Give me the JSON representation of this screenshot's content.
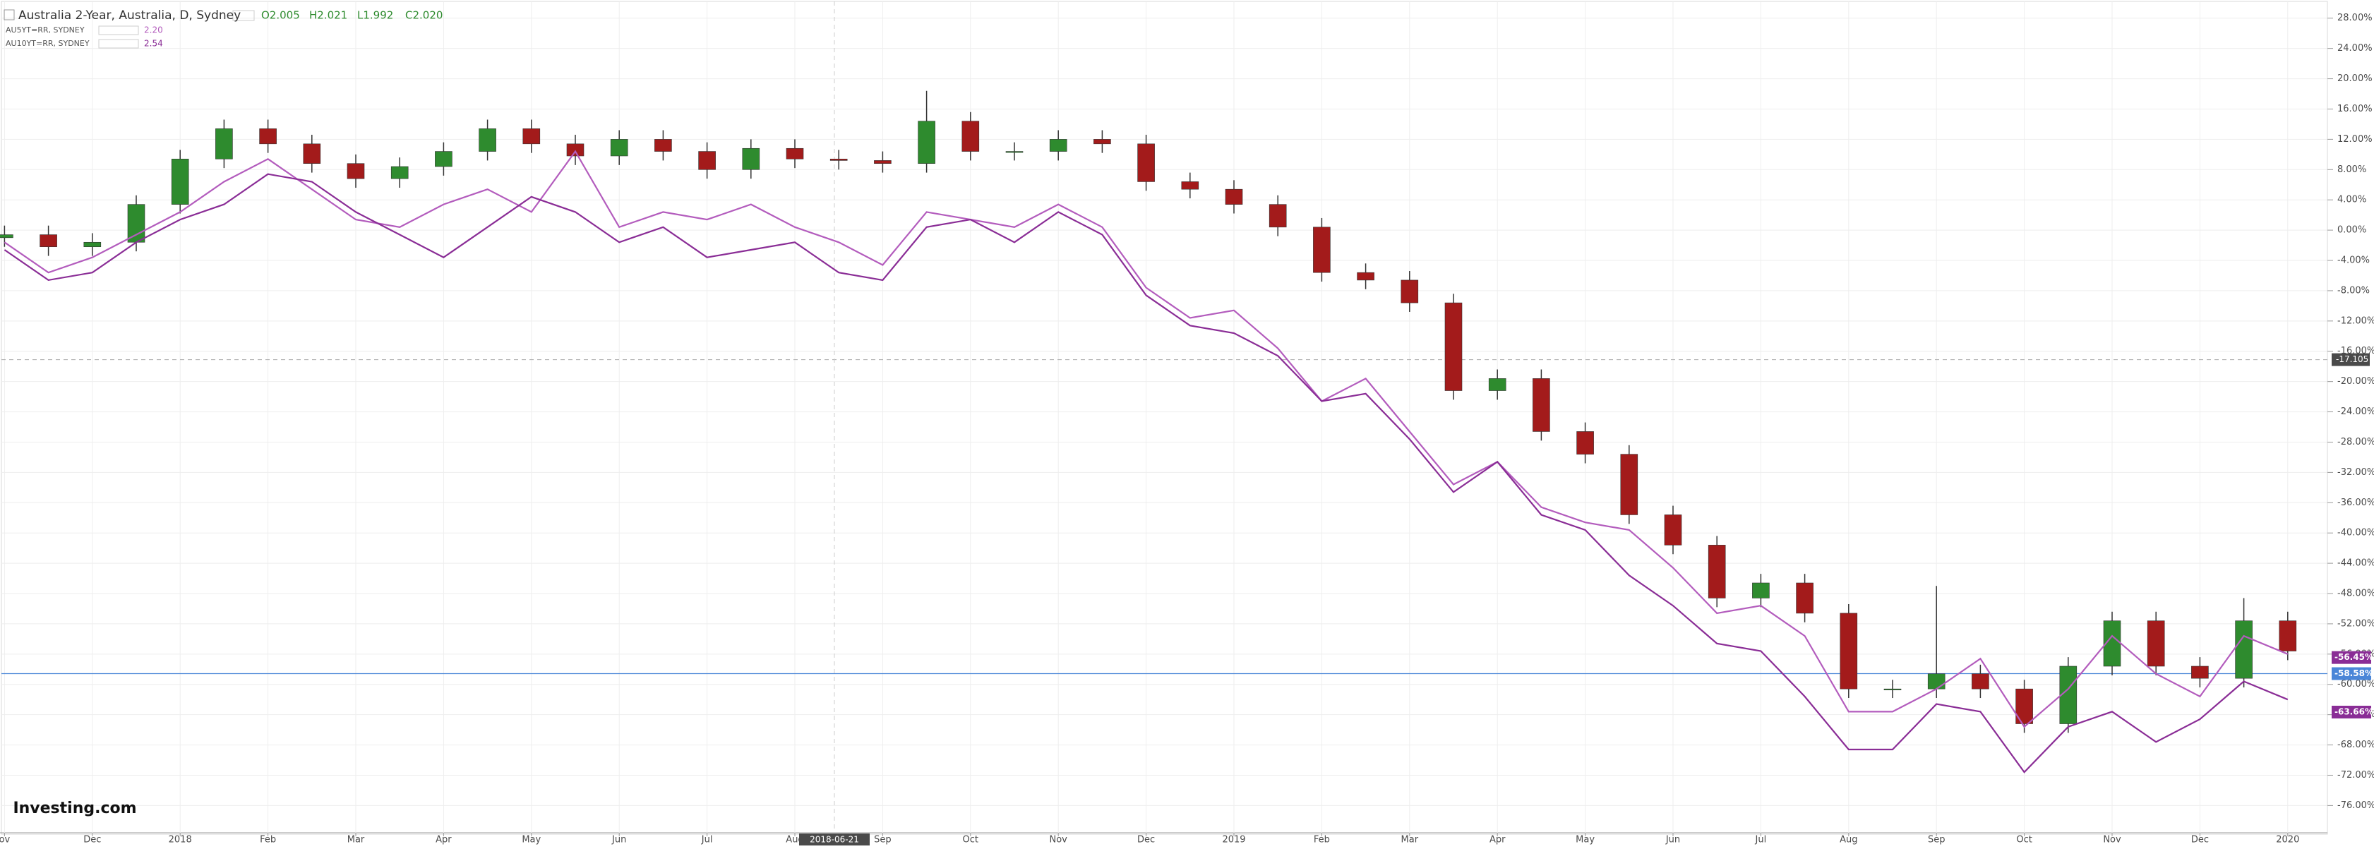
{
  "chart_data": {
    "type": "candlestick",
    "title": "Australia 2-Year, Australia, D, Sydney",
    "ohlc_labels": [
      "O2.005",
      "H2.021",
      "L1.992",
      "C2.020"
    ],
    "categories": [
      "ov",
      null,
      "Dec",
      null,
      "2018",
      null,
      "Feb",
      null,
      "Mar",
      null,
      "Apr",
      null,
      "May",
      null,
      "Jun",
      null,
      "Jul",
      null,
      "Aug",
      null,
      "Sep",
      null,
      "Oct",
      null,
      "Nov",
      null,
      "Dec",
      null,
      "2019",
      null,
      "Feb",
      null,
      "Mar",
      null,
      "Apr",
      null,
      "May",
      null,
      "Jun",
      null,
      "Jul",
      null,
      "Aug",
      null,
      "Sep",
      null,
      "Oct",
      null,
      "Nov",
      null,
      "Dec",
      null,
      "2020"
    ],
    "candles": {
      "up_color": "#2e8b2e",
      "down_color": "#a31b1b",
      "open": [
        -1,
        -0.6,
        -2.2,
        -1.6,
        3.4,
        9.4,
        13.4,
        11.4,
        8.8,
        6.8,
        8.4,
        10.4,
        13.4,
        11.4,
        9.8,
        12,
        10.4,
        8,
        10.8,
        9.4,
        9.2,
        8.8,
        14.4,
        10.4,
        10.4,
        12,
        11.4,
        6.4,
        5.4,
        3.4,
        0.4,
        -5.6,
        -6.6,
        -9.6,
        -21.2,
        -19.6,
        -26.6,
        -29.6,
        -37.6,
        -41.6,
        -48.6,
        -46.6,
        -50.6,
        -60.6,
        -60.6,
        -58.6,
        -60.6,
        -65.2,
        -57.6,
        -51.6,
        -57.6,
        -59.2,
        -51.6
      ],
      "high": [
        0.6,
        0.6,
        -0.4,
        4.6,
        10.6,
        14.6,
        14.6,
        12.6,
        10,
        9.6,
        11.6,
        14.6,
        14.6,
        12.6,
        13.2,
        13.2,
        11.6,
        12,
        12,
        10.6,
        10.4,
        18.4,
        15.6,
        11.6,
        13.2,
        13.2,
        12.6,
        7.6,
        6.6,
        4.6,
        1.6,
        -4.4,
        -5.4,
        -8.4,
        -18.4,
        -18.4,
        -25.4,
        -28.4,
        -36.4,
        -40.4,
        -45.4,
        -45.4,
        -49.4,
        -59.4,
        -47,
        -57.4,
        -59.4,
        -56.4,
        -50.4,
        -50.4,
        -56.4,
        -48.6,
        -50.4
      ],
      "low": [
        -2.2,
        -3.4,
        -3.4,
        -2.8,
        2.2,
        8.2,
        10.2,
        7.6,
        5.6,
        5.6,
        7.2,
        9.2,
        10.2,
        8.6,
        8.6,
        9.2,
        6.8,
        6.8,
        8.2,
        8,
        7.6,
        7.6,
        9.2,
        9.2,
        9.2,
        10.2,
        5.2,
        4.2,
        2.2,
        -0.8,
        -6.8,
        -7.8,
        -10.8,
        -22.4,
        -22.4,
        -27.8,
        -30.8,
        -38.8,
        -42.8,
        -49.8,
        -49.8,
        -51.8,
        -61.8,
        -61.8,
        -61.8,
        -61.8,
        -66.4,
        -66.4,
        -58.8,
        -58.8,
        -60.4,
        -60.4,
        -56.8
      ],
      "close": [
        -0.6,
        -2.2,
        -1.6,
        3.4,
        9.4,
        13.4,
        11.4,
        8.8,
        6.8,
        8.4,
        10.4,
        13.4,
        11.4,
        9.8,
        12,
        10.4,
        8,
        10.8,
        9.4,
        9.2,
        8.8,
        14.4,
        10.4,
        10.4,
        12,
        11.4,
        6.4,
        5.4,
        3.4,
        0.4,
        -5.6,
        -6.6,
        -9.6,
        -21.2,
        -19.6,
        -26.6,
        -29.6,
        -37.6,
        -41.6,
        -48.6,
        -46.6,
        -50.6,
        -60.6,
        -60.6,
        -58.6,
        -60.6,
        -65.2,
        -57.6,
        -51.6,
        -57.6,
        -59.2,
        -51.6,
        -55.6
      ]
    },
    "series": [
      {
        "name": "AU5YT=RR, SYDNEY",
        "color": "#b35cbd",
        "last": {
          "value": 2.2,
          "label": "2.20"
        },
        "values": [
          -1.6,
          -5.6,
          -3.6,
          -0.6,
          2.4,
          6.4,
          9.4,
          5.4,
          1.4,
          0.4,
          3.4,
          5.4,
          2.4,
          10.4,
          0.4,
          2.4,
          1.4,
          3.4,
          0.4,
          -1.6,
          -4.6,
          2.4,
          1.4,
          0.4,
          3.4,
          0.4,
          -7.6,
          -11.6,
          -10.6,
          -15.6,
          -22.6,
          -19.6,
          -26.6,
          -33.6,
          -30.6,
          -36.6,
          -38.6,
          -39.6,
          -44.6,
          -50.6,
          -49.6,
          -53.6,
          -63.6,
          -63.6,
          -60.6,
          -56.6,
          -65.6,
          -60.6,
          -53.6,
          -58.6,
          -61.6,
          -53.6,
          -56
        ]
      },
      {
        "name": "AU10YT=RR, SYDNEY",
        "color": "#8a2d96",
        "last": {
          "value": 2.54,
          "label": "2.54"
        },
        "values": [
          -2.6,
          -6.6,
          -5.6,
          -1.6,
          1.4,
          3.4,
          7.4,
          6.4,
          2.4,
          -0.6,
          -3.6,
          0.4,
          4.4,
          2.4,
          -1.6,
          0.4,
          -3.6,
          -2.6,
          -1.6,
          -5.6,
          -6.6,
          0.4,
          1.4,
          -1.6,
          2.4,
          -0.6,
          -8.6,
          -12.6,
          -13.6,
          -16.6,
          -22.6,
          -21.6,
          -27.6,
          -34.6,
          -30.6,
          -37.6,
          -39.6,
          -45.6,
          -49.6,
          -54.6,
          -55.6,
          -61.6,
          -68.6,
          -68.6,
          -62.6,
          -63.6,
          -71.6,
          -65.6,
          -63.6,
          -67.6,
          -64.6,
          -59.6,
          -62
        ]
      }
    ],
    "ylim": [
      -79.6,
      30.4
    ],
    "yticks": [
      {
        "value": 28,
        "label": "28.00%"
      },
      {
        "value": 24,
        "label": "24.00%"
      },
      {
        "value": 20,
        "label": "20.00%"
      },
      {
        "value": 16,
        "label": "16.00%"
      },
      {
        "value": 12,
        "label": "12.00%"
      },
      {
        "value": 8,
        "label": "8.00%"
      },
      {
        "value": 4,
        "label": "4.00%"
      },
      {
        "value": 0,
        "label": "0.00%"
      },
      {
        "value": -4,
        "label": "-4.00%"
      },
      {
        "value": -8,
        "label": "-8.00%"
      },
      {
        "value": -12,
        "label": "-12.00%"
      },
      {
        "value": -16,
        "label": "-16.00%"
      },
      {
        "value": -20,
        "label": "-20.00%"
      },
      {
        "value": -24,
        "label": "-24.00%"
      },
      {
        "value": -28,
        "label": "-28.00%"
      },
      {
        "value": -32,
        "label": "-32.00%"
      },
      {
        "value": -36,
        "label": "-36.00%"
      },
      {
        "value": -40,
        "label": "-40.00%"
      },
      {
        "value": -44,
        "label": "-44.00%"
      },
      {
        "value": -48,
        "label": "-48.00%"
      },
      {
        "value": -52,
        "label": "-52.00%"
      },
      {
        "value": -56,
        "label": "-56.00%"
      },
      {
        "value": -60,
        "label": "-60.00%"
      },
      {
        "value": -64,
        "label": "-64.00%"
      },
      {
        "value": -68,
        "label": "-68.00%"
      },
      {
        "value": -72,
        "label": "-72.00%"
      },
      {
        "value": -76,
        "label": "-76.00%"
      }
    ],
    "grid": true,
    "crosshair": {
      "x_label": "2018-06-21",
      "y": {
        "value": -17.105,
        "label": "-17.105"
      }
    },
    "price_labels": [
      {
        "value": -56.45,
        "label": "-56.45%",
        "color": "#8a2d96"
      },
      {
        "value": -58.58,
        "label": "-58.58%",
        "color": "#4a86d8"
      },
      {
        "value": -63.66,
        "label": "-63.66%",
        "color": "#8a2d96"
      }
    ],
    "logo": "Investing.com"
  }
}
